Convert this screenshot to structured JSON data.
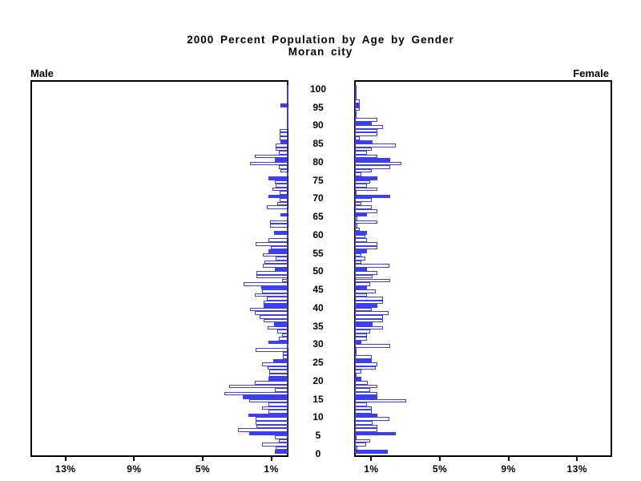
{
  "title": {
    "line1": "2000 Percent Population by Age by Gender",
    "line2": "Moran city"
  },
  "panels": {
    "male_label": "Male",
    "female_label": "Female"
  },
  "axis": {
    "x_tick_labels": [
      "1%",
      "5%",
      "9%",
      "13%"
    ],
    "x_tick_values_pct": [
      1,
      5,
      9,
      13
    ],
    "x_range_pct": [
      0,
      15
    ],
    "age_tick_labels": [
      "0",
      "5",
      "10",
      "15",
      "20",
      "25",
      "30",
      "35",
      "40",
      "45",
      "50",
      "55",
      "60",
      "65",
      "70",
      "75",
      "80",
      "85",
      "90",
      "95",
      "100"
    ],
    "age_tick_values": [
      0,
      5,
      10,
      15,
      20,
      25,
      30,
      35,
      40,
      45,
      50,
      55,
      60,
      65,
      70,
      75,
      80,
      85,
      90,
      95,
      100
    ]
  },
  "colors": {
    "bar_blue": "#3d3df2",
    "frame_black": "#000000",
    "background": "#ffffff"
  },
  "chart_data": {
    "type": "bar",
    "subtype": "population-pyramid",
    "title": "2000 Percent Population by Age by Gender",
    "subtitle": "Moran city",
    "x_unit": "percent of population",
    "x_tick_labels": [
      "1%",
      "5%",
      "9%",
      "13%"
    ],
    "x_range_pct": [
      0,
      15
    ],
    "age_min": 0,
    "age_max": 100,
    "bar_width_years": 1,
    "solid_fill_at_ages_divisible_by": 5,
    "legend": "none",
    "grid": false,
    "series": [
      {
        "name": "Male",
        "side": "left",
        "values_pct_by_age": [
          0.75,
          0.7,
          1.5,
          0.5,
          0.75,
          2.25,
          2.9,
          1.8,
          1.85,
          1.85,
          2.3,
          1.1,
          1.5,
          1.1,
          2.25,
          2.6,
          3.7,
          0.75,
          3.4,
          1.9,
          1.1,
          1.07,
          1.07,
          1.16,
          1.5,
          0.85,
          0.3,
          0.3,
          1.86,
          0,
          1.12,
          0.5,
          0.33,
          0.6,
          1.16,
          0.8,
          1.4,
          1.65,
          1.9,
          2.2,
          1.4,
          1.4,
          1.2,
          1.9,
          1.5,
          1.53,
          2.56,
          0.33,
          1.8,
          1.8,
          0.74,
          1.45,
          1.35,
          0.7,
          1.45,
          1.1,
          0.98,
          1.86,
          1.1,
          0,
          0.78,
          0,
          1.05,
          1.05,
          0,
          0.4,
          0,
          1.2,
          0.6,
          0.47,
          1.1,
          0.47,
          0.88,
          0.7,
          0.74,
          1.1,
          0,
          0.4,
          0.5,
          2.2,
          0.75,
          1.9,
          0.5,
          0.7,
          0.7,
          0.4,
          0.45,
          0.45,
          0.45,
          0,
          0,
          0,
          0,
          0,
          0,
          0.4,
          0,
          0,
          0,
          0,
          0
        ]
      },
      {
        "name": "Female",
        "side": "right",
        "values_pct_by_age": [
          1.9,
          0.15,
          0.65,
          0.87,
          0.1,
          2.37,
          1.3,
          1.3,
          1.02,
          2.0,
          1.33,
          1.0,
          1.0,
          0.7,
          3.0,
          1.33,
          1.33,
          0.87,
          1.33,
          0.74,
          0.37,
          0,
          0.37,
          1.2,
          1.33,
          1.0,
          1.0,
          0,
          0,
          2.06,
          0.37,
          0.7,
          0.7,
          0.9,
          1.64,
          1.02,
          1.64,
          1.64,
          1.98,
          1.0,
          1.33,
          1.64,
          1.64,
          0.7,
          1.2,
          0.7,
          0.87,
          2.06,
          1.02,
          1.33,
          0.7,
          2.0,
          0.37,
          0.6,
          0.37,
          0.7,
          1.33,
          1.33,
          0.7,
          0.6,
          0.7,
          0.3,
          0.15,
          1.33,
          0.15,
          0.7,
          1.33,
          1.0,
          0.37,
          1.0,
          2.06,
          0.1,
          1.29,
          0.7,
          0.87,
          1.33,
          0.37,
          1.0,
          2.06,
          2.7,
          2.06,
          1.29,
          0.7,
          1.0,
          2.4,
          1.02,
          0.3,
          1.3,
          1.3,
          1.65,
          1.0,
          1.3,
          0,
          0,
          0.3,
          0.3,
          0.3,
          0,
          0,
          0,
          0
        ]
      }
    ]
  }
}
